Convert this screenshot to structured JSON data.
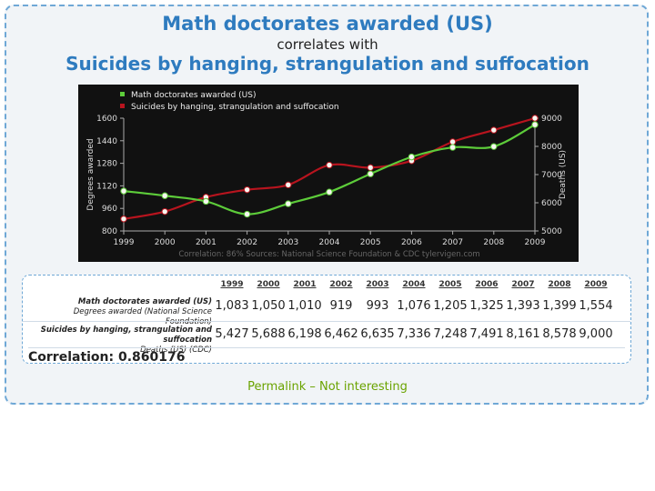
{
  "header": {
    "title1": "Math doctorates awarded (US)",
    "connector": "correlates with",
    "title2": "Suicides by hanging, strangulation and suffocation"
  },
  "chart_data": {
    "type": "line",
    "x": [
      "1999",
      "2000",
      "2001",
      "2002",
      "2003",
      "2004",
      "2005",
      "2006",
      "2007",
      "2008",
      "2009"
    ],
    "series": [
      {
        "name": "Math doctorates awarded (US)",
        "axis": "left",
        "color": "#5dcc3a",
        "values": [
          1083,
          1050,
          1010,
          919,
          993,
          1076,
          1205,
          1325,
          1393,
          1399,
          1554
        ]
      },
      {
        "name": "Suicides by hanging, strangulation and suffocation",
        "axis": "right",
        "color": "#b8141e",
        "values": [
          5427,
          5688,
          6198,
          6462,
          6635,
          7336,
          7248,
          7491,
          8161,
          8578,
          9000
        ]
      }
    ],
    "ylabel_left": "Degrees awarded",
    "ylabel_right": "Deaths (US)",
    "ylim_left": [
      800,
      1600
    ],
    "ylim_right": [
      5000,
      9000
    ],
    "yticks_left": [
      "800",
      "960",
      "1120",
      "1280",
      "1440",
      "1600"
    ],
    "yticks_right": [
      "5000",
      "6000",
      "7000",
      "8000",
      "9000"
    ],
    "footer": "Correlation: 86%    Sources: National Science Foundation & CDC    tylervigen.com",
    "legend_position": "top-left",
    "grid": false,
    "background": "#111111"
  },
  "table": {
    "years": [
      "1999",
      "2000",
      "2001",
      "2002",
      "2003",
      "2004",
      "2005",
      "2006",
      "2007",
      "2008",
      "2009"
    ],
    "rows": [
      {
        "label": "Math doctorates awarded (US)",
        "sublabel": "Degrees awarded (National Science Foundation)",
        "values": [
          "1,083",
          "1,050",
          "1,010",
          "919",
          "993",
          "1,076",
          "1,205",
          "1,325",
          "1,393",
          "1,399",
          "1,554"
        ]
      },
      {
        "label": "Suicides by hanging, strangulation and suffocation",
        "sublabel": "Deaths (US) (CDC)",
        "values": [
          "5,427",
          "5,688",
          "6,198",
          "6,462",
          "6,635",
          "7,336",
          "7,248",
          "7,491",
          "8,161",
          "8,578",
          "9,000"
        ]
      }
    ],
    "correlation": "Correlation: 0.860176"
  },
  "links": {
    "permalink": "Permalink",
    "separator": " – ",
    "not_interesting": "Not interesting"
  }
}
